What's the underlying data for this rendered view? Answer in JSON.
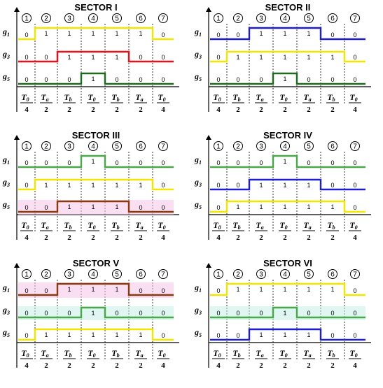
{
  "colors": {
    "yellow": "#f2e600",
    "red": "#e8101a",
    "green": "#4aa84a",
    "darkgreen": "#1e6b1e",
    "blue": "#1e1ecc",
    "brown": "#8b3a0e",
    "pink": "#f5c4e8",
    "cyan": "#c6f0e6"
  },
  "interval_labels": [
    "1",
    "2",
    "3",
    "4",
    "5",
    "6",
    "7"
  ],
  "sectors": [
    {
      "title": "SECTOR I",
      "rows": [
        {
          "name": "g",
          "sub": "1",
          "bits": [
            0,
            1,
            1,
            1,
            1,
            1,
            0
          ],
          "color": "yellow"
        },
        {
          "name": "g",
          "sub": "3",
          "bits": [
            0,
            0,
            1,
            1,
            1,
            0,
            0
          ],
          "color": "red"
        },
        {
          "name": "g",
          "sub": "5",
          "bits": [
            0,
            0,
            0,
            1,
            0,
            0,
            0
          ],
          "color": "darkgreen"
        }
      ],
      "durations": [
        {
          "n": "T",
          "s": "0",
          "d": "4"
        },
        {
          "n": "T",
          "s": "a",
          "d": "2"
        },
        {
          "n": "T",
          "s": "b",
          "d": "2"
        },
        {
          "n": "T",
          "s": "0",
          "d": "2"
        },
        {
          "n": "T",
          "s": "b",
          "d": "2"
        },
        {
          "n": "T",
          "s": "a",
          "d": "2"
        },
        {
          "n": "T",
          "s": "0",
          "d": "4"
        }
      ]
    },
    {
      "title": "SECTOR II",
      "rows": [
        {
          "name": "g",
          "sub": "1",
          "bits": [
            0,
            0,
            1,
            1,
            1,
            0,
            0
          ],
          "color": "blue"
        },
        {
          "name": "g",
          "sub": "3",
          "bits": [
            0,
            1,
            1,
            1,
            1,
            1,
            0
          ],
          "color": "yellow"
        },
        {
          "name": "g",
          "sub": "5",
          "bits": [
            0,
            0,
            0,
            1,
            0,
            0,
            0
          ],
          "color": "darkgreen"
        }
      ],
      "durations": [
        {
          "n": "T",
          "s": "0",
          "d": "4"
        },
        {
          "n": "T",
          "s": "b",
          "d": "2"
        },
        {
          "n": "T",
          "s": "a",
          "d": "2"
        },
        {
          "n": "T",
          "s": "0",
          "d": "2"
        },
        {
          "n": "T",
          "s": "a",
          "d": "2"
        },
        {
          "n": "T",
          "s": "b",
          "d": "2"
        },
        {
          "n": "T",
          "s": "0",
          "d": "4"
        }
      ]
    },
    {
      "title": "SECTOR III",
      "rows": [
        {
          "name": "g",
          "sub": "1",
          "bits": [
            0,
            0,
            0,
            1,
            0,
            0,
            0
          ],
          "color": "green"
        },
        {
          "name": "g",
          "sub": "3",
          "bits": [
            0,
            1,
            1,
            1,
            1,
            1,
            0
          ],
          "color": "yellow"
        },
        {
          "name": "g",
          "sub": "5",
          "bits": [
            0,
            0,
            1,
            1,
            1,
            0,
            0
          ],
          "color": "brown",
          "glow": "pink"
        }
      ],
      "durations": [
        {
          "n": "T",
          "s": "0",
          "d": "4"
        },
        {
          "n": "T",
          "s": "a",
          "d": "2"
        },
        {
          "n": "T",
          "s": "b",
          "d": "2"
        },
        {
          "n": "T",
          "s": "0",
          "d": "2"
        },
        {
          "n": "T",
          "s": "b",
          "d": "2"
        },
        {
          "n": "T",
          "s": "a",
          "d": "2"
        },
        {
          "n": "T",
          "s": "0",
          "d": "4"
        }
      ]
    },
    {
      "title": "SECTOR IV",
      "rows": [
        {
          "name": "g",
          "sub": "1",
          "bits": [
            0,
            0,
            0,
            1,
            0,
            0,
            0
          ],
          "color": "green"
        },
        {
          "name": "g",
          "sub": "3",
          "bits": [
            0,
            0,
            1,
            1,
            1,
            0,
            0
          ],
          "color": "blue"
        },
        {
          "name": "g",
          "sub": "5",
          "bits": [
            0,
            1,
            1,
            1,
            1,
            1,
            0
          ],
          "color": "yellow"
        }
      ],
      "durations": [
        {
          "n": "T",
          "s": "0",
          "d": "4"
        },
        {
          "n": "T",
          "s": "b",
          "d": "2"
        },
        {
          "n": "T",
          "s": "a",
          "d": "2"
        },
        {
          "n": "T",
          "s": "0",
          "d": "2"
        },
        {
          "n": "T",
          "s": "a",
          "d": "2"
        },
        {
          "n": "T",
          "s": "b",
          "d": "2"
        },
        {
          "n": "T",
          "s": "0",
          "d": "4"
        }
      ]
    },
    {
      "title": "SECTOR V",
      "rows": [
        {
          "name": "g",
          "sub": "1",
          "bits": [
            0,
            0,
            1,
            1,
            1,
            0,
            0
          ],
          "color": "brown",
          "glow": "pink"
        },
        {
          "name": "g",
          "sub": "3",
          "bits": [
            0,
            0,
            0,
            1,
            0,
            0,
            0
          ],
          "color": "green",
          "glow": "cyan"
        },
        {
          "name": "g",
          "sub": "5",
          "bits": [
            0,
            1,
            1,
            1,
            1,
            1,
            0
          ],
          "color": "yellow"
        }
      ],
      "durations": [
        {
          "n": "T",
          "s": "0",
          "d": "4"
        },
        {
          "n": "T",
          "s": "a",
          "d": "2"
        },
        {
          "n": "T",
          "s": "b",
          "d": "2"
        },
        {
          "n": "T",
          "s": "0",
          "d": "2"
        },
        {
          "n": "T",
          "s": "b",
          "d": "2"
        },
        {
          "n": "T",
          "s": "a",
          "d": "2"
        },
        {
          "n": "T",
          "s": "0",
          "d": "4"
        }
      ]
    },
    {
      "title": "SECTOR VI",
      "rows": [
        {
          "name": "g",
          "sub": "1",
          "bits": [
            0,
            1,
            1,
            1,
            1,
            1,
            0
          ],
          "color": "yellow"
        },
        {
          "name": "g",
          "sub": "3",
          "bits": [
            0,
            0,
            0,
            1,
            0,
            0,
            0
          ],
          "color": "green",
          "glow": "cyan"
        },
        {
          "name": "g",
          "sub": "5",
          "bits": [
            0,
            0,
            1,
            1,
            1,
            0,
            0
          ],
          "color": "blue"
        }
      ],
      "durations": [
        {
          "n": "T",
          "s": "0",
          "d": "4"
        },
        {
          "n": "T",
          "s": "b",
          "d": "2"
        },
        {
          "n": "T",
          "s": "a",
          "d": "2"
        },
        {
          "n": "T",
          "s": "0",
          "d": "2"
        },
        {
          "n": "T",
          "s": "a",
          "d": "2"
        },
        {
          "n": "T",
          "s": "b",
          "d": "2"
        },
        {
          "n": "T",
          "s": "0",
          "d": "4"
        }
      ]
    }
  ]
}
